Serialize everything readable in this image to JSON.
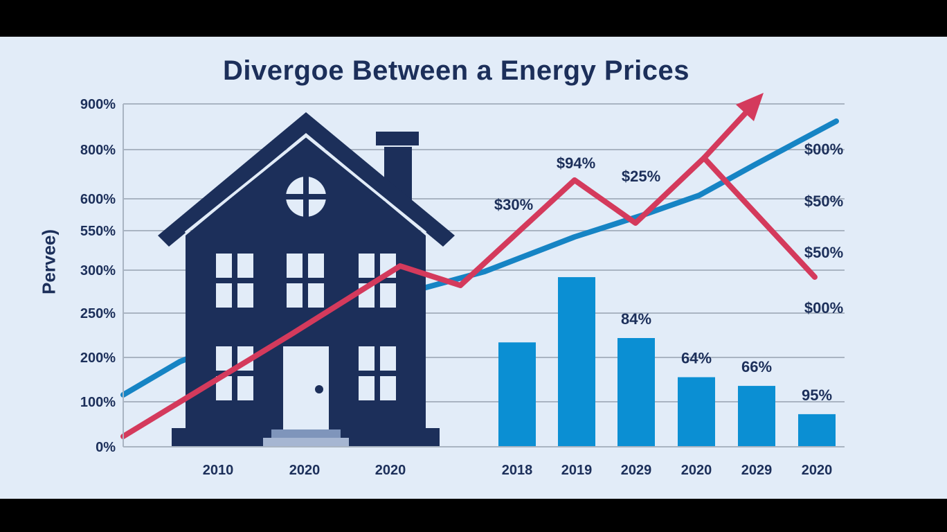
{
  "chart_data": {
    "type": "bar",
    "title": "Divergoe Between a Energy Prices",
    "ylabel": "Pervee)",
    "ytick_labels": [
      "0%",
      "100%",
      "200%",
      "250%",
      "300%",
      "550%",
      "600%",
      "800%",
      "900%"
    ],
    "right_labels": [
      "$00%",
      "$50%",
      "$50%",
      "$00%"
    ],
    "x_labels_left": [
      "2010",
      "2020",
      "2020"
    ],
    "categories": [
      "2018",
      "2019",
      "2029",
      "2020",
      "2029",
      "2020"
    ],
    "grid": true,
    "series": [
      {
        "values": [
          240,
          390,
          250,
          160,
          140,
          75
        ]
      }
    ],
    "bar_labels": [
      "",
      "",
      "84%",
      "64%",
      "66%",
      "95%"
    ],
    "line_labels": [
      "$30%",
      "$94%",
      "$25%"
    ],
    "colors": {
      "bars": "#0b8fd3",
      "blue_line": "#1684c4",
      "red_line": "#d43a5c",
      "house": "#1c2f5a",
      "background": "#e2ecf8"
    },
    "icons": [
      "house-icon"
    ]
  }
}
